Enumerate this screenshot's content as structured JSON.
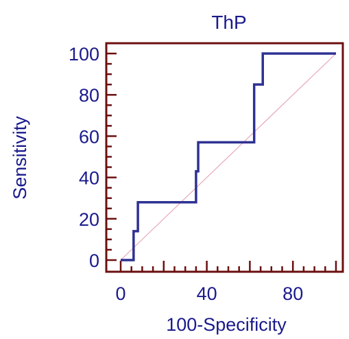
{
  "chart_data": {
    "type": "line",
    "title": "ThP",
    "xlabel": "100-Specificity",
    "ylabel": "Sensitivity",
    "xlim": [
      0,
      100
    ],
    "ylim": [
      0,
      100
    ],
    "x_ticks": [
      0,
      40,
      80
    ],
    "y_ticks": [
      0,
      20,
      40,
      60,
      80,
      100
    ],
    "grid": false,
    "legend": "none",
    "series": [
      {
        "x": [
          0,
          6,
          6,
          7,
          7,
          8,
          8,
          35,
          35,
          36,
          36,
          62,
          62,
          63,
          63,
          66,
          66,
          100
        ],
        "y": [
          0,
          0,
          14,
          14,
          14,
          14,
          28,
          28,
          43,
          43,
          57,
          57,
          85,
          85,
          85,
          85,
          100,
          100
        ],
        "color": "#2e3192"
      },
      {
        "x": [
          0,
          100
        ],
        "y": [
          0,
          100
        ],
        "color": "#e6a8b4"
      }
    ],
    "frame_color": "#6b0f0f"
  }
}
